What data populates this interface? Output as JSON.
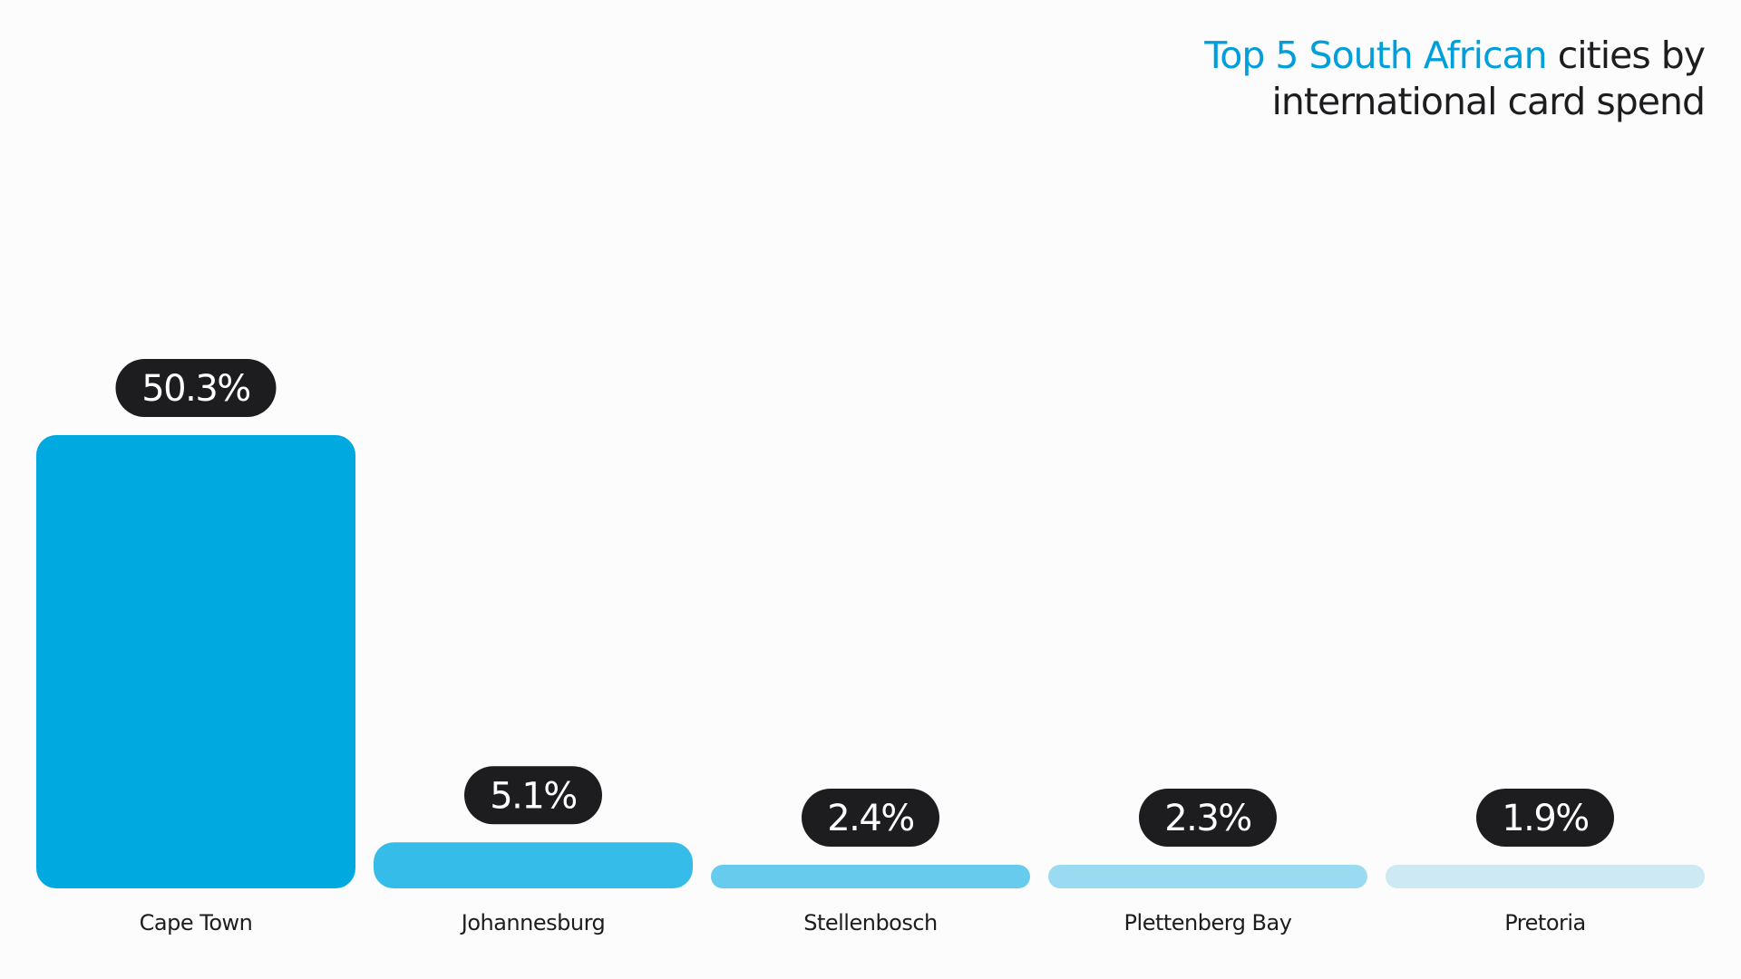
{
  "chart_data": {
    "type": "bar",
    "title": {
      "highlight": "Top 5 South African",
      "line1_rest": " cities by",
      "line2": "international card spend"
    },
    "categories": [
      "Cape Town",
      "Johannesburg",
      "Stellenbosch",
      "Plettenberg Bay",
      "Pretoria"
    ],
    "values": [
      50.3,
      5.1,
      2.4,
      2.3,
      1.9
    ],
    "value_labels": [
      "50.3%",
      "5.1%",
      "2.4%",
      "2.3%",
      "1.9%"
    ],
    "unit": "%",
    "colors": [
      "#00a9e0",
      "#36bce8",
      "#66cbec",
      "#9adbf1",
      "#cde9f4"
    ],
    "label_color": "#1d1d1f",
    "grid": false,
    "legend": "none"
  }
}
